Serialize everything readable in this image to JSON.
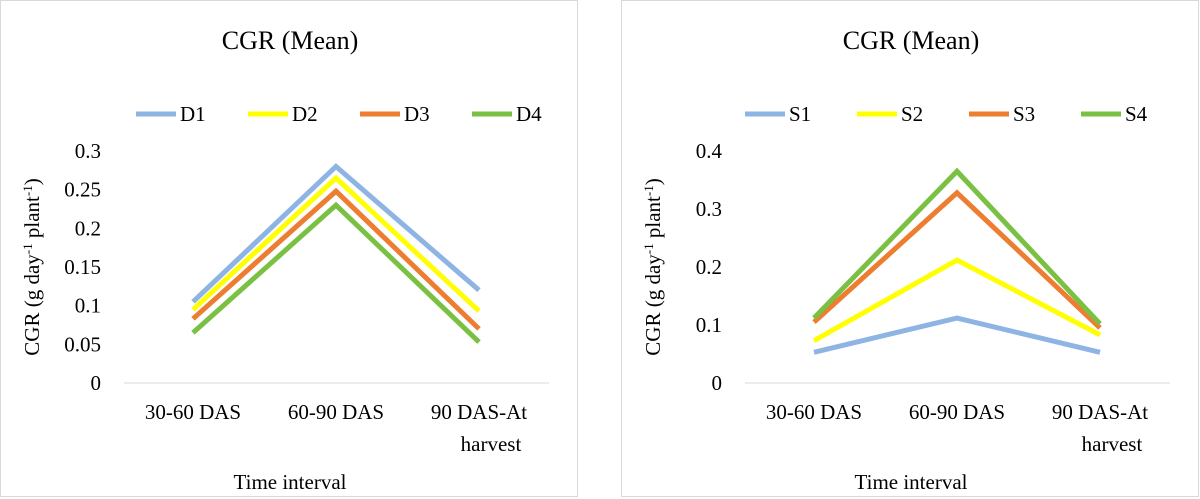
{
  "charts": [
    {
      "type": "line",
      "title": "CGR (Mean)",
      "xlabel": "Time interval",
      "ylabel": "CGR (g day-1 plant-1)",
      "ylabel_parts": {
        "a": "CGR (g day",
        "sup1": "-1",
        "b": " plant",
        "sup2": "-1",
        "c": ")"
      },
      "categories": [
        [
          "30-60 DAS"
        ],
        [
          "60-90 DAS"
        ],
        [
          "90 DAS-At",
          "harvest"
        ]
      ],
      "yticks": [
        "0",
        "0.05",
        "0.1",
        "0.15",
        "0.2",
        "0.25",
        "0.3"
      ],
      "ylim": [
        0,
        0.3
      ],
      "grid": false,
      "legend_position": "top",
      "series": [
        {
          "name": "D1",
          "color": "#8eb4e3",
          "values": [
            0.105,
            0.28,
            0.12
          ]
        },
        {
          "name": "D2",
          "color": "#ffff00",
          "values": [
            0.095,
            0.265,
            0.093
          ]
        },
        {
          "name": "D3",
          "color": "#ed7d31",
          "values": [
            0.083,
            0.248,
            0.07
          ]
        },
        {
          "name": "D4",
          "color": "#7ac143",
          "values": [
            0.065,
            0.23,
            0.053
          ]
        }
      ]
    },
    {
      "type": "line",
      "title": "CGR (Mean)",
      "xlabel": "Time interval",
      "ylabel": "CGR (g day-1 plant-1)",
      "ylabel_parts": {
        "a": "CGR (g day",
        "sup1": "-1",
        "b": " plant",
        "sup2": "-1",
        "c": ")"
      },
      "categories": [
        [
          "30-60 DAS"
        ],
        [
          "60-90 DAS"
        ],
        [
          "90 DAS-At",
          "harvest"
        ]
      ],
      "yticks": [
        "0",
        "0.1",
        "0.2",
        "0.3",
        "0.4"
      ],
      "ylim": [
        0,
        0.4
      ],
      "grid": false,
      "legend_position": "top",
      "series": [
        {
          "name": "S1",
          "color": "#8eb4e3",
          "values": [
            0.053,
            0.112,
            0.053
          ]
        },
        {
          "name": "S2",
          "color": "#ffff00",
          "values": [
            0.073,
            0.212,
            0.083
          ]
        },
        {
          "name": "S3",
          "color": "#ed7d31",
          "values": [
            0.105,
            0.328,
            0.095
          ]
        },
        {
          "name": "S4",
          "color": "#7ac143",
          "values": [
            0.112,
            0.365,
            0.102
          ]
        }
      ]
    }
  ],
  "chart_data": [
    {
      "type": "line",
      "title": "CGR (Mean)",
      "xlabel": "Time interval",
      "ylabel": "CGR (g day-1 plant-1)",
      "categories": [
        "30-60 DAS",
        "60-90 DAS",
        "90 DAS-At harvest"
      ],
      "ylim": [
        0,
        0.3
      ],
      "series": [
        {
          "name": "D1",
          "values": [
            0.105,
            0.28,
            0.12
          ]
        },
        {
          "name": "D2",
          "values": [
            0.095,
            0.265,
            0.093
          ]
        },
        {
          "name": "D3",
          "values": [
            0.083,
            0.248,
            0.07
          ]
        },
        {
          "name": "D4",
          "values": [
            0.065,
            0.23,
            0.053
          ]
        }
      ]
    },
    {
      "type": "line",
      "title": "CGR (Mean)",
      "xlabel": "Time interval",
      "ylabel": "CGR (g day-1 plant-1)",
      "categories": [
        "30-60 DAS",
        "60-90 DAS",
        "90 DAS-At harvest"
      ],
      "ylim": [
        0,
        0.4
      ],
      "series": [
        {
          "name": "S1",
          "values": [
            0.053,
            0.112,
            0.053
          ]
        },
        {
          "name": "S2",
          "values": [
            0.073,
            0.212,
            0.083
          ]
        },
        {
          "name": "S3",
          "values": [
            0.105,
            0.328,
            0.095
          ]
        },
        {
          "name": "S4",
          "values": [
            0.112,
            0.365,
            0.102
          ]
        }
      ]
    }
  ]
}
